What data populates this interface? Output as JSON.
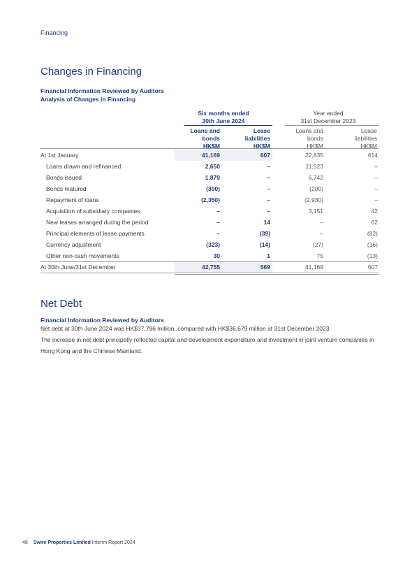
{
  "header": {
    "section": "Financing"
  },
  "changes": {
    "title": "Changes in Financing",
    "sub1": "Financial Information Reviewed by Auditors",
    "sub2": "Analysis of Changes in Financing",
    "period_current": [
      "Six months ended",
      "30th June 2024"
    ],
    "period_previous": [
      "Year ended",
      "31st December 2023"
    ],
    "col_loans": [
      "Loans and",
      "bonds",
      "HK$M"
    ],
    "col_leases": [
      "Lease",
      "liabilities",
      "HK$M"
    ],
    "rows": [
      {
        "label": "At 1st January",
        "c1": "41,169",
        "c2": "607",
        "p1": "22,835",
        "p2": "614"
      },
      {
        "label": "Loans drawn and refinanced",
        "c1": "2,650",
        "c2": "–",
        "p1": "11,523",
        "p2": "–"
      },
      {
        "label": "Bonds issued",
        "c1": "1,879",
        "c2": "–",
        "p1": "6,742",
        "p2": "–"
      },
      {
        "label": "Bonds matured",
        "c1": "(300)",
        "c2": "–",
        "p1": "(200)",
        "p2": "–"
      },
      {
        "label": "Repayment of loans",
        "c1": "(2,350)",
        "c2": "–",
        "p1": "(2,930)",
        "p2": "–"
      },
      {
        "label": "Acquisition of subsidiary companies",
        "c1": "–",
        "c2": "–",
        "p1": "3,151",
        "p2": "42"
      },
      {
        "label": "New leases arranged during the period",
        "c1": "–",
        "c2": "14",
        "p1": "–",
        "p2": "62"
      },
      {
        "label": "Principal elements of lease payments",
        "c1": "–",
        "c2": "(39)",
        "p1": "–",
        "p2": "(82)"
      },
      {
        "label": "Currency adjustment",
        "c1": "(323)",
        "c2": "(14)",
        "p1": "(27)",
        "p2": "(16)"
      },
      {
        "label": "Other non-cash movements",
        "c1": "30",
        "c2": "1",
        "p1": "75",
        "p2": "(13)"
      },
      {
        "label": "At 30th June/31st December",
        "c1": "42,755",
        "c2": "569",
        "p1": "41,169",
        "p2": "607"
      }
    ]
  },
  "net_debt": {
    "title": "Net Debt",
    "sub": "Financial Information Reviewed by Auditors",
    "para1": "Net debt at 30th June 2024 was HK$37,796 million, compared with HK$36,679 million at 31st December 2023.",
    "para2": "The increase in net debt principally reflected capital and development expenditure and investment in joint venture companies in Hong Kong and the Chinese Mainland."
  },
  "footer": {
    "page": "48",
    "company": "Swire Properties Limited",
    "report": "Interim Report 2024"
  }
}
